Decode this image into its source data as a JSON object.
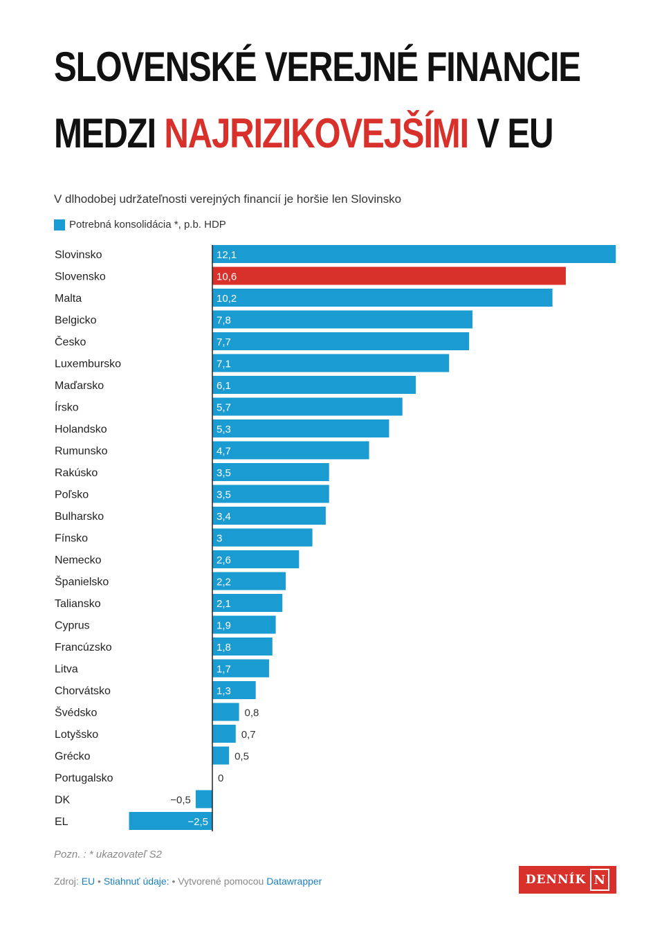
{
  "title": {
    "line1": "SLOVENSKÉ VEREJNÉ FINANCIE",
    "line2_prefix": "MEDZI",
    "line2_highlight": "NAJRIZIKOVEJŠÍMI",
    "line2_suffix": "V EU"
  },
  "subtitle": "V dlhodobej udržateľnosti verejných financií je horšie len Slovinsko",
  "legend_label": "Potrebná konsolidácia *, p.b. HDP",
  "note": "Pozn. : * ukazovateľ S2",
  "footer": {
    "source_label": "Zdroj:",
    "source_link": "EU",
    "sep1": " • ",
    "download_link": "Stiahnuť údaje:",
    "sep2": " • ",
    "made_with": "Vytvorené pomocou",
    "tool_link": "Datawrapper"
  },
  "logo": {
    "text": "DENNÍK",
    "letter": "N"
  },
  "colors": {
    "bar": "#1a9bd2",
    "highlight": "#d8312b",
    "title_red": "#d8312b"
  },
  "chart_data": {
    "type": "bar",
    "orientation": "horizontal",
    "highlight": "Slovensko",
    "categories": [
      "Slovinsko",
      "Slovensko",
      "Malta",
      "Belgicko",
      "Česko",
      "Luxembursko",
      "Maďarsko",
      "Írsko",
      "Holandsko",
      "Rumunsko",
      "Rakúsko",
      "Poľsko",
      "Bulharsko",
      "Fínsko",
      "Nemecko",
      "Španielsko",
      "Taliansko",
      "Cyprus",
      "Francúzsko",
      "Litva",
      "Chorvátsko",
      "Švédsko",
      "Lotyšsko",
      "Grécko",
      "Portugalsko",
      "DK",
      "EL"
    ],
    "values": [
      12.1,
      10.6,
      10.2,
      7.8,
      7.7,
      7.1,
      6.1,
      5.7,
      5.3,
      4.7,
      3.5,
      3.5,
      3.4,
      3,
      2.6,
      2.2,
      2.1,
      1.9,
      1.8,
      1.7,
      1.3,
      0.8,
      0.7,
      0.5,
      0,
      -0.5,
      -2.5
    ],
    "labels": [
      "12,1",
      "10,6",
      "10,2",
      "7,8",
      "7,7",
      "7,1",
      "6,1",
      "5,7",
      "5,3",
      "4,7",
      "3,5",
      "3,5",
      "3,4",
      "3",
      "2,6",
      "2,2",
      "2,1",
      "1,9",
      "1,8",
      "1,7",
      "1,3",
      "0,8",
      "0,7",
      "0,5",
      "0",
      "−0,5",
      "−2,5"
    ],
    "xlim": [
      -2.5,
      12.1
    ],
    "series": [
      {
        "name": "Potrebná konsolidácia *, p.b. HDP"
      }
    ]
  }
}
